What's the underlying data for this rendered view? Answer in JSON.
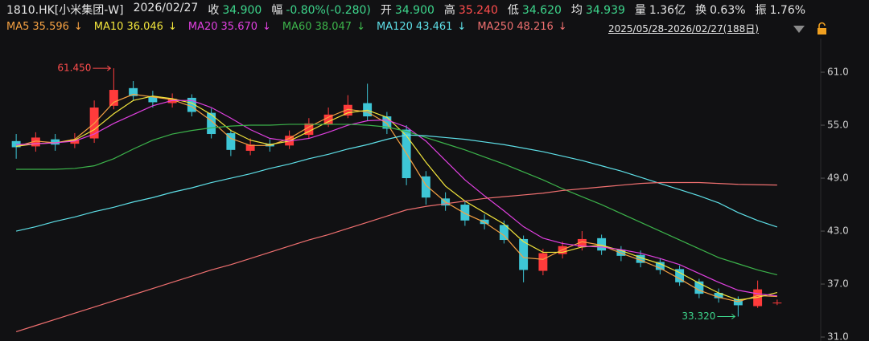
{
  "header": [
    {
      "text": "1810.HK[小米集团-W]",
      "color": "#e6e6e6"
    },
    {
      "text": "2026/02/27",
      "color": "#e6e6e6"
    },
    {
      "label": "收",
      "value": "34.900",
      "color": "#3dd68c"
    },
    {
      "label": "幅",
      "value": "-0.80%(-0.280)",
      "color": "#3dd68c"
    },
    {
      "label": "开",
      "value": "34.900",
      "color": "#3dd68c"
    },
    {
      "label": "高",
      "value": "35.240",
      "color": "#ff4d4d"
    },
    {
      "label": "低",
      "value": "34.620",
      "color": "#3dd68c"
    },
    {
      "label": "均",
      "value": "34.939",
      "color": "#3dd68c"
    },
    {
      "label": "量",
      "value": "1.36亿",
      "color": "#e6e6e6"
    },
    {
      "label": "换",
      "value": "0.63%",
      "color": "#e6e6e6"
    },
    {
      "label": "振",
      "value": "1.76%",
      "color": "#e6e6e6"
    }
  ],
  "range_label": "2025/05/28-2026/02/27(188日)",
  "chart_data": {
    "type": "candlestick",
    "up_color": "#ff3b3b",
    "down_color": "#3ec6d6",
    "open": [
      53.2,
      52.6,
      53.4,
      52.9,
      53.5,
      57.2,
      59.2,
      58.2,
      57.5,
      58.1,
      56.4,
      54.1,
      52.1,
      52.9,
      52.7,
      53.9,
      55.1,
      56.1,
      57.5,
      56.0,
      54.5,
      49.2,
      46.7,
      46.0,
      44.3,
      43.7,
      42.1,
      38.5,
      40.4,
      41.2,
      42.2,
      40.9,
      40.3,
      39.5,
      38.7,
      37.3,
      36.0,
      35.3,
      34.5,
      34.9
    ],
    "high": [
      54.0,
      54.2,
      54.0,
      54.1,
      57.8,
      61.45,
      60.0,
      58.9,
      58.6,
      58.5,
      56.9,
      54.5,
      53.5,
      53.4,
      54.4,
      55.8,
      57.0,
      58.4,
      59.7,
      56.5,
      55.0,
      49.8,
      47.4,
      46.5,
      44.9,
      44.2,
      42.5,
      41.0,
      41.8,
      43.0,
      42.6,
      41.3,
      40.8,
      39.9,
      39.1,
      37.6,
      36.5,
      35.6,
      37.4,
      35.24
    ],
    "low": [
      51.2,
      52.0,
      52.1,
      52.4,
      53.0,
      56.8,
      57.8,
      57.0,
      57.0,
      56.0,
      53.5,
      51.5,
      51.6,
      52.0,
      52.3,
      53.5,
      54.8,
      55.8,
      55.5,
      54.0,
      48.2,
      46.0,
      45.3,
      43.6,
      43.2,
      41.6,
      37.2,
      38.0,
      39.9,
      40.8,
      40.3,
      39.6,
      38.9,
      38.1,
      36.8,
      35.4,
      34.9,
      33.32,
      34.3,
      34.62
    ],
    "close": [
      52.5,
      53.6,
      52.8,
      53.4,
      57.0,
      59.0,
      58.3,
      57.6,
      58.0,
      56.5,
      54.0,
      52.2,
      52.8,
      52.6,
      53.8,
      55.2,
      56.2,
      57.3,
      56.0,
      54.6,
      49.0,
      46.8,
      45.9,
      44.2,
      43.8,
      42.0,
      38.6,
      40.5,
      41.3,
      42.1,
      40.8,
      40.2,
      39.4,
      38.6,
      37.2,
      35.9,
      35.4,
      34.6,
      36.4,
      34.9
    ],
    "series": [
      {
        "name": "MA5",
        "legend_value": "35.596",
        "trend": "↓",
        "color": "#f5a142",
        "values": [
          52.6,
          53.2,
          53.0,
          53.4,
          55.2,
          57.6,
          58.5,
          58.2,
          57.9,
          57.1,
          55.5,
          53.5,
          52.7,
          52.7,
          53.5,
          54.8,
          55.9,
          56.8,
          56.5,
          55.2,
          51.8,
          48.2,
          46.3,
          45.0,
          44.0,
          42.5,
          40.0,
          39.8,
          40.9,
          41.8,
          41.4,
          40.5,
          39.7,
          38.8,
          37.6,
          36.3,
          35.5,
          35.0,
          35.7,
          35.596
        ]
      },
      {
        "name": "MA10",
        "legend_value": "36.046",
        "trend": "↓",
        "color": "#f2e53c",
        "values": [
          52.6,
          52.9,
          53.0,
          53.3,
          54.5,
          56.3,
          57.8,
          58.3,
          58.0,
          57.5,
          56.2,
          54.4,
          53.3,
          52.8,
          53.2,
          54.3,
          55.4,
          56.4,
          56.7,
          55.9,
          53.8,
          50.8,
          48.1,
          46.4,
          45.1,
          43.8,
          41.8,
          40.6,
          40.6,
          41.2,
          41.4,
          40.8,
          40.0,
          39.3,
          38.3,
          37.1,
          36.0,
          35.2,
          35.5,
          36.046
        ]
      },
      {
        "name": "MA20",
        "legend_value": "35.670",
        "trend": "↓",
        "color": "#e040e0",
        "values": [
          52.8,
          52.9,
          53.0,
          53.2,
          54.0,
          55.2,
          56.2,
          57.2,
          57.8,
          57.8,
          57.0,
          55.8,
          54.5,
          53.5,
          53.2,
          53.5,
          54.2,
          55.0,
          55.5,
          55.6,
          54.8,
          53.2,
          51.0,
          48.8,
          47.0,
          45.3,
          43.5,
          42.2,
          41.6,
          41.3,
          41.2,
          40.9,
          40.5,
          39.9,
          39.2,
          38.2,
          37.2,
          36.3,
          35.9,
          35.67
        ]
      },
      {
        "name": "MA60",
        "legend_value": "38.047",
        "trend": "↓",
        "color": "#3cb44b",
        "values": [
          50.0,
          50.0,
          50.0,
          50.1,
          50.4,
          51.2,
          52.3,
          53.3,
          54.0,
          54.4,
          54.7,
          54.9,
          55.0,
          55.0,
          55.1,
          55.1,
          55.1,
          55.1,
          55.0,
          54.8,
          54.3,
          53.6,
          52.9,
          52.2,
          51.4,
          50.6,
          49.7,
          48.8,
          47.8,
          46.9,
          46.0,
          45.0,
          44.0,
          43.0,
          42.0,
          41.0,
          40.0,
          39.3,
          38.6,
          38.047
        ]
      },
      {
        "name": "MA120",
        "legend_value": "43.461",
        "trend": "↓",
        "color": "#5ee0e8",
        "values": [
          43.0,
          43.5,
          44.1,
          44.6,
          45.2,
          45.7,
          46.3,
          46.8,
          47.4,
          47.9,
          48.5,
          49.0,
          49.5,
          50.1,
          50.6,
          51.2,
          51.7,
          52.3,
          52.8,
          53.4,
          53.9,
          53.8,
          53.6,
          53.4,
          53.1,
          52.8,
          52.4,
          52.0,
          51.5,
          51.0,
          50.4,
          49.8,
          49.1,
          48.4,
          47.7,
          47.0,
          46.2,
          45.1,
          44.2,
          43.461
        ]
      },
      {
        "name": "MA250",
        "legend_value": "48.216",
        "trend": "↓",
        "color": "#f07070",
        "values": [
          31.6,
          32.3,
          33.0,
          33.7,
          34.4,
          35.1,
          35.8,
          36.5,
          37.2,
          37.9,
          38.6,
          39.2,
          39.9,
          40.6,
          41.3,
          42.0,
          42.6,
          43.3,
          44.0,
          44.7,
          45.4,
          45.8,
          46.1,
          46.4,
          46.7,
          46.9,
          47.1,
          47.3,
          47.6,
          47.8,
          48.0,
          48.2,
          48.4,
          48.5,
          48.5,
          48.5,
          48.4,
          48.3,
          48.25,
          48.216
        ]
      }
    ],
    "ylim": [
      30.55,
      64.82
    ],
    "yticks": [
      {
        "value": 31,
        "label": "31.0"
      },
      {
        "value": 37,
        "label": "37.0"
      },
      {
        "value": 43,
        "label": "43.0"
      },
      {
        "value": 49,
        "label": "49.0"
      },
      {
        "value": 55,
        "label": "55.0"
      },
      {
        "value": 61,
        "label": "61.0"
      }
    ],
    "high_label": "61.450",
    "high_color": "#ff4d4d",
    "low_label": "33.320",
    "low_color": "#3dd68c"
  }
}
